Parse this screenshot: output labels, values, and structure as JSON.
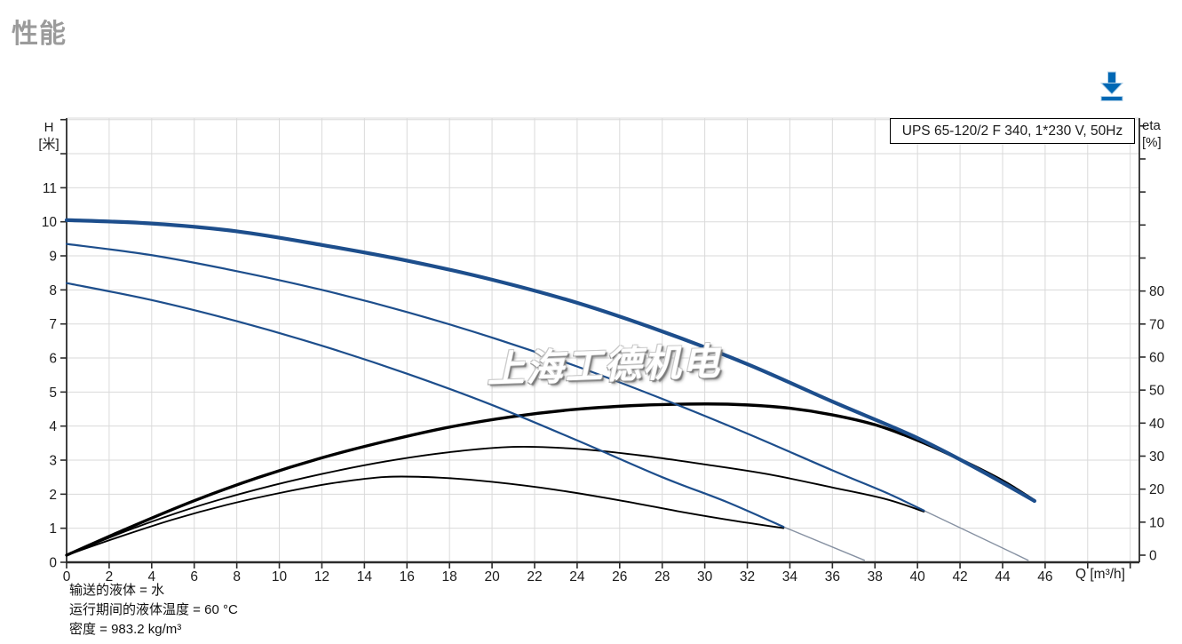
{
  "page": {
    "title": "性能"
  },
  "toolbar": {
    "download_icon": "download-icon",
    "accent_color": "#0068b4"
  },
  "chart_data": {
    "type": "line",
    "title": "UPS 65-120/2 F 340, 1*230 V, 50Hz",
    "watermark": "上海工德机电",
    "grid": true,
    "legend_position": "top-right",
    "colors": {
      "curve_blue": "#1d4e8c",
      "curve_black": "#000000",
      "tail_gray": "#8691a2",
      "grid": "#dadada",
      "axis": "#2b2b2b"
    },
    "axes": {
      "x": {
        "unit_label": "Q [m³/h]",
        "min": 0,
        "max": 50.4,
        "labeled_ticks": [
          0,
          2,
          4,
          6,
          8,
          10,
          12,
          14,
          16,
          18,
          20,
          22,
          24,
          26,
          28,
          30,
          32,
          34,
          36,
          38,
          40,
          42,
          44,
          46
        ],
        "unlabeled_ticks": [
          48,
          50
        ]
      },
      "y_left": {
        "name": "H",
        "unit": "[米]",
        "min": 0,
        "max": 13.05,
        "labeled_ticks": [
          0,
          1,
          2,
          3,
          4,
          5,
          6,
          7,
          8,
          9,
          10,
          11
        ],
        "unlabeled_ticks": [
          12,
          13
        ]
      },
      "y_right": {
        "name": "eta",
        "unit": "[%]",
        "min": 0,
        "max": 132,
        "labeled_ticks": [
          0,
          10,
          20,
          30,
          40,
          50,
          60,
          70,
          80
        ],
        "unlabeled_ticks": [
          90,
          100,
          110,
          120,
          130
        ]
      }
    },
    "series": [
      {
        "name": "head-tail-speed2",
        "kind": "head",
        "axis": "left",
        "style": "tail",
        "points": [
          [
            40.3,
            1.52
          ],
          [
            45.2,
            0.06
          ]
        ]
      },
      {
        "name": "head-tail-speed1",
        "kind": "head",
        "axis": "left",
        "style": "tail",
        "points": [
          [
            33.7,
            1.04
          ],
          [
            37.5,
            0.06
          ]
        ]
      },
      {
        "name": "efficiency-speed3",
        "kind": "efficiency",
        "axis": "right",
        "style": "thick-black",
        "points": [
          [
            0,
            0
          ],
          [
            3,
            8.5
          ],
          [
            6,
            16.5
          ],
          [
            9,
            23.5
          ],
          [
            12,
            29.5
          ],
          [
            15,
            34.5
          ],
          [
            18,
            38.8
          ],
          [
            21,
            42
          ],
          [
            24,
            44.2
          ],
          [
            27,
            45.4
          ],
          [
            30,
            45.8
          ],
          [
            32,
            45.5
          ],
          [
            34,
            44.5
          ],
          [
            36,
            42.5
          ],
          [
            38,
            39.5
          ],
          [
            40,
            34.8
          ],
          [
            42,
            29
          ],
          [
            44,
            22.5
          ],
          [
            45.5,
            16.5
          ]
        ]
      },
      {
        "name": "efficiency-speed2",
        "kind": "efficiency",
        "axis": "right",
        "style": "thin-black",
        "points": [
          [
            0,
            0
          ],
          [
            3,
            7.8
          ],
          [
            6,
            14.5
          ],
          [
            9,
            20
          ],
          [
            12,
            24.6
          ],
          [
            15,
            28.4
          ],
          [
            18,
            31.2
          ],
          [
            21,
            32.8
          ],
          [
            24,
            32.2
          ],
          [
            27,
            30.2
          ],
          [
            30,
            27.5
          ],
          [
            33,
            24.5
          ],
          [
            36,
            20.5
          ],
          [
            38.5,
            17
          ],
          [
            40.3,
            13.2
          ]
        ]
      },
      {
        "name": "efficiency-speed1",
        "kind": "efficiency",
        "axis": "right",
        "style": "thin-black",
        "points": [
          [
            0,
            0
          ],
          [
            2.5,
            5.6
          ],
          [
            5,
            10.8
          ],
          [
            7.5,
            15.2
          ],
          [
            10,
            18.8
          ],
          [
            12.5,
            21.8
          ],
          [
            15,
            23.7
          ],
          [
            17.5,
            23.5
          ],
          [
            20,
            22.2
          ],
          [
            23,
            19.8
          ],
          [
            26,
            16.6
          ],
          [
            29,
            13
          ],
          [
            31.5,
            10.3
          ],
          [
            33.7,
            8.2
          ]
        ]
      },
      {
        "name": "head-speed3",
        "kind": "head",
        "axis": "left",
        "style": "thick-blue",
        "points": [
          [
            0,
            10.05
          ],
          [
            4,
            9.95
          ],
          [
            8,
            9.72
          ],
          [
            12,
            9.32
          ],
          [
            16,
            8.86
          ],
          [
            20,
            8.3
          ],
          [
            24,
            7.62
          ],
          [
            28,
            6.78
          ],
          [
            32,
            5.82
          ],
          [
            36,
            4.72
          ],
          [
            40,
            3.65
          ],
          [
            43,
            2.68
          ],
          [
            45.5,
            1.8
          ]
        ]
      },
      {
        "name": "head-speed2",
        "kind": "head",
        "axis": "left",
        "style": "thin-blue",
        "points": [
          [
            0,
            9.35
          ],
          [
            4,
            9.02
          ],
          [
            8,
            8.55
          ],
          [
            12,
            8.0
          ],
          [
            16,
            7.35
          ],
          [
            20,
            6.6
          ],
          [
            24,
            5.75
          ],
          [
            28,
            4.8
          ],
          [
            32,
            3.78
          ],
          [
            36,
            2.7
          ],
          [
            38.5,
            2.05
          ],
          [
            40.3,
            1.52
          ]
        ]
      },
      {
        "name": "head-speed1",
        "kind": "head",
        "axis": "left",
        "style": "thin-blue",
        "points": [
          [
            0,
            8.2
          ],
          [
            4,
            7.7
          ],
          [
            8,
            7.08
          ],
          [
            12,
            6.36
          ],
          [
            16,
            5.54
          ],
          [
            20,
            4.62
          ],
          [
            24,
            3.58
          ],
          [
            28,
            2.5
          ],
          [
            31,
            1.78
          ],
          [
            33.7,
            1.04
          ]
        ]
      }
    ],
    "footnotes": [
      "输送的液体 = 水",
      "运行期间的液体温度 = 60 °C",
      "密度 = 983.2 kg/m³"
    ]
  }
}
